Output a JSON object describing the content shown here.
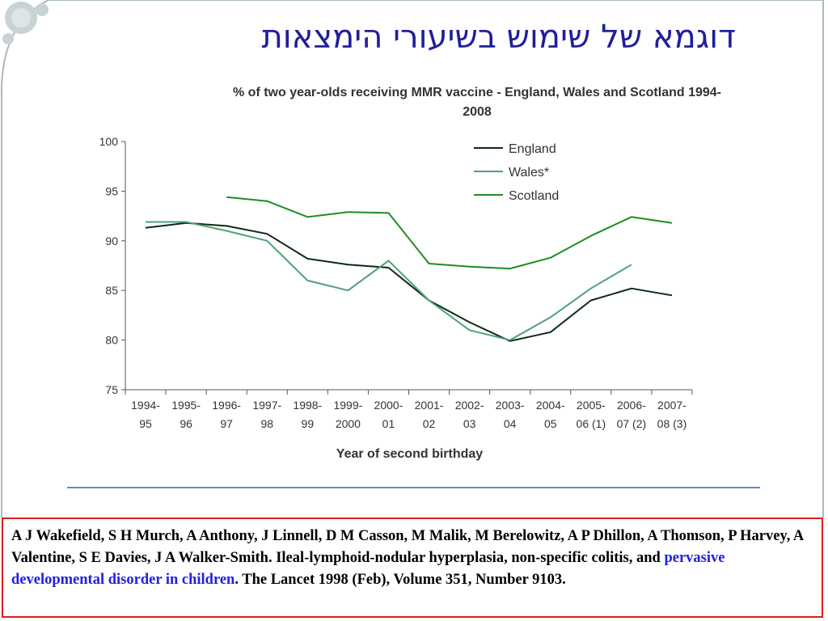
{
  "title": "דוגמא של שימוש בשיעורי הימצאות",
  "chart_data": {
    "type": "line",
    "title": "% of two year-olds receiving MMR vaccine - England, Wales and Scotland 1994-2008",
    "xlabel": "Year of second birthday",
    "ylabel": "",
    "ylim": [
      75,
      100
    ],
    "yticks": [
      75,
      80,
      85,
      90,
      95,
      100
    ],
    "categories": [
      [
        "1994-",
        "95"
      ],
      [
        "1995-",
        "96"
      ],
      [
        "1996-",
        "97"
      ],
      [
        "1997-",
        "98"
      ],
      [
        "1998-",
        "99"
      ],
      [
        "1999-",
        "2000"
      ],
      [
        "2000-",
        "01"
      ],
      [
        "2001-",
        "02"
      ],
      [
        "2002-",
        "03"
      ],
      [
        "2003-",
        "04"
      ],
      [
        "2004-",
        "05"
      ],
      [
        "2005-",
        "06 (1)"
      ],
      [
        "2006-",
        "07 (2)"
      ],
      [
        "2007-",
        "08 (3)"
      ]
    ],
    "legend_position": "top-right",
    "grid": false,
    "series": [
      {
        "name": "England",
        "color": "#0d2b12",
        "values": [
          91.3,
          91.8,
          91.5,
          90.7,
          88.2,
          87.6,
          87.3,
          84.0,
          81.8,
          79.9,
          80.8,
          84.0,
          85.2,
          84.5
        ]
      },
      {
        "name": "Wales*",
        "color": "#4fa07a",
        "values": [
          91.9,
          91.9,
          91.0,
          90.0,
          86.0,
          85.0,
          88.0,
          84.0,
          81.0,
          80.0,
          82.3,
          85.2,
          87.6,
          null
        ]
      },
      {
        "name": "Scotland",
        "color": "#1e8c24",
        "values": [
          null,
          null,
          94.4,
          94.0,
          92.4,
          92.9,
          92.8,
          87.7,
          87.4,
          87.2,
          88.3,
          90.5,
          92.4,
          91.8
        ]
      }
    ]
  },
  "citation": {
    "part1": "A J Wakefield, S H Murch, A Anthony, J Linnell, D M Casson, M Malik, M Berelowitz, A P Dhillon, A Thomson, P Harvey, A Valentine, S E Davies, J A Walker-Smith. Ileal-lymphoid-nodular hyperplasia, non-specific colitis, and ",
    "highlight": "pervasive developmental disorder in children",
    "part2": ".     The Lancet 1998 (Feb), Volume 351, Number 9103."
  },
  "colors": {
    "title": "#1f1f9a",
    "citation_border": "#e01c1c",
    "highlight": "#2020e0",
    "divider": "#5b8fbe"
  }
}
